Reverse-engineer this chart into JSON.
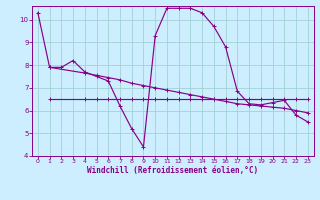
{
  "xlabel": "Windchill (Refroidissement éolien,°C)",
  "background_color": "#cceeff",
  "grid_color": "#99cccc",
  "line_color": "#880088",
  "xlim": [
    -0.5,
    23.5
  ],
  "ylim": [
    4,
    10.6
  ],
  "yticks": [
    4,
    5,
    6,
    7,
    8,
    9,
    10
  ],
  "xticks": [
    0,
    1,
    2,
    3,
    4,
    5,
    6,
    7,
    8,
    9,
    10,
    11,
    12,
    13,
    14,
    15,
    16,
    17,
    18,
    19,
    20,
    21,
    22,
    23
  ],
  "series1_x": [
    0,
    1,
    2,
    3,
    4,
    5,
    6,
    7,
    8,
    9,
    10,
    11,
    12,
    13,
    14,
    15,
    16,
    17,
    18,
    19,
    20,
    21,
    22,
    23
  ],
  "series1_y": [
    10.3,
    7.9,
    7.9,
    8.2,
    7.7,
    7.5,
    7.3,
    6.2,
    5.2,
    4.4,
    9.3,
    10.5,
    10.5,
    10.5,
    10.3,
    9.7,
    8.8,
    6.85,
    6.3,
    6.25,
    6.35,
    6.45,
    5.8,
    5.5
  ],
  "series2_x": [
    1,
    4,
    5,
    6,
    7,
    8,
    9,
    10,
    11,
    12,
    13,
    14,
    15,
    16,
    17,
    18,
    19,
    20,
    21,
    22,
    23
  ],
  "series2_y": [
    7.9,
    7.65,
    7.55,
    7.45,
    7.35,
    7.2,
    7.1,
    7.0,
    6.9,
    6.8,
    6.7,
    6.6,
    6.5,
    6.4,
    6.3,
    6.25,
    6.2,
    6.15,
    6.1,
    6.0,
    5.9
  ],
  "series3_x": [
    1,
    4,
    5,
    6,
    7,
    8,
    9,
    10,
    11,
    12,
    13,
    14,
    15,
    16,
    17,
    18,
    19,
    20,
    21,
    22,
    23
  ],
  "series3_y": [
    6.5,
    6.5,
    6.5,
    6.5,
    6.5,
    6.5,
    6.5,
    6.5,
    6.5,
    6.5,
    6.5,
    6.5,
    6.5,
    6.5,
    6.5,
    6.5,
    6.5,
    6.5,
    6.5,
    6.5,
    6.5
  ]
}
